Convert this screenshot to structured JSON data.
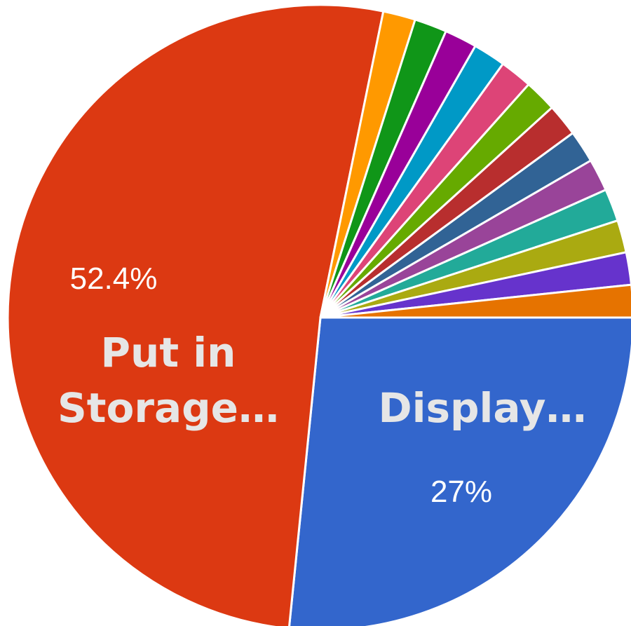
{
  "chart_data": {
    "type": "pie",
    "title": "",
    "start_angle_deg": 0,
    "direction": "clockwise",
    "slice_border_color": "#ffffff",
    "slices": [
      {
        "label": "Display…",
        "value": 27.0,
        "percent_label": "27%",
        "color": "#3366cc"
      },
      {
        "label": "Put in Storage…",
        "value": 52.4,
        "percent_label": "52.4%",
        "color": "#dc3912"
      },
      {
        "label": "",
        "value": 1.7,
        "color": "#ff9900"
      },
      {
        "label": "",
        "value": 1.7,
        "color": "#109618"
      },
      {
        "label": "",
        "value": 1.7,
        "color": "#990099"
      },
      {
        "label": "",
        "value": 1.7,
        "color": "#0099c6"
      },
      {
        "label": "",
        "value": 1.7,
        "color": "#dd4477"
      },
      {
        "label": "",
        "value": 1.7,
        "color": "#66aa00"
      },
      {
        "label": "",
        "value": 1.7,
        "color": "#b82e2e"
      },
      {
        "label": "",
        "value": 1.7,
        "color": "#316395"
      },
      {
        "label": "",
        "value": 1.7,
        "color": "#994499"
      },
      {
        "label": "",
        "value": 1.7,
        "color": "#22aa99"
      },
      {
        "label": "",
        "value": 1.7,
        "color": "#aaaa11"
      },
      {
        "label": "",
        "value": 1.7,
        "color": "#6633cc"
      },
      {
        "label": "",
        "value": 1.7,
        "color": "#e67300"
      }
    ]
  }
}
